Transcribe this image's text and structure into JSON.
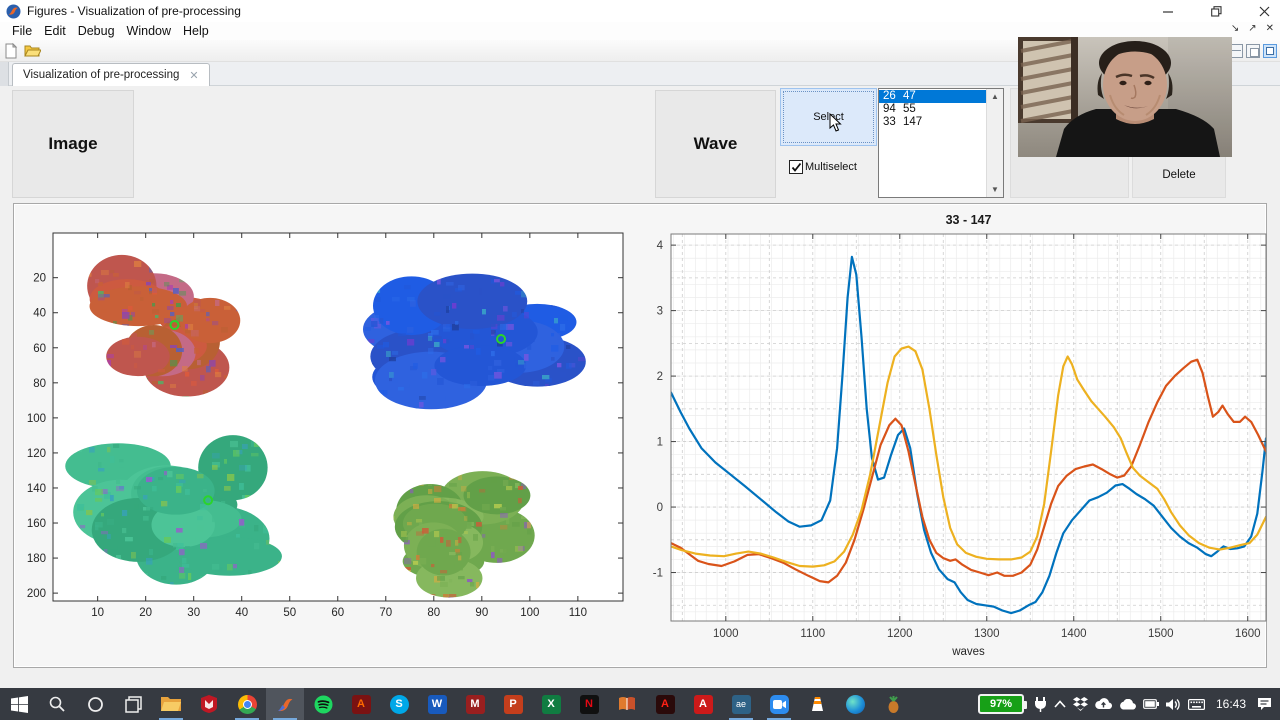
{
  "window": {
    "title": "Figures - Visualization of pre-processing"
  },
  "menu": {
    "items": [
      "File",
      "Edit",
      "Debug",
      "Window",
      "Help"
    ]
  },
  "toolbar": {
    "icons": [
      "new-document",
      "open-folder"
    ]
  },
  "tab": {
    "label": "Visualization of pre-processing"
  },
  "controls": {
    "image_button": "Image",
    "wave_button": "Wave",
    "select_button": "Select",
    "multiselect_label": "Multiselect",
    "multiselect_checked": true,
    "delete_button": "Delete",
    "listbox": {
      "items": [
        {
          "a": "26",
          "b": "47",
          "selected": true
        },
        {
          "a": "94",
          "b": "55",
          "selected": false
        },
        {
          "a": "33",
          "b": "147",
          "selected": false
        }
      ]
    }
  },
  "chart_data": [
    {
      "type": "heatmap",
      "title": "",
      "xlabel": "",
      "ylabel": "",
      "xlim": [
        0.7,
        119.4
      ],
      "ylim_top_to_bottom": [
        -5.5,
        204.5
      ],
      "y_axis_reversed": true,
      "xticks": [
        10,
        20,
        30,
        40,
        50,
        60,
        70,
        80,
        90,
        100,
        110
      ],
      "yticks": [
        20,
        40,
        60,
        80,
        100,
        120,
        140,
        160,
        180,
        200
      ],
      "grid": false,
      "marker_color": "#2bd42b",
      "markers": [
        [
          26,
          47
        ],
        [
          94,
          55
        ],
        [
          33,
          147
        ]
      ],
      "blobs": [
        {
          "name": "red-multicolor-blob",
          "cx": 27,
          "cy": 50,
          "rx": 21,
          "ry": 40,
          "base": [
            "#cd5a40",
            "#c96038",
            "#bf564e",
            "#c46a86",
            "#b86033"
          ],
          "accents": [
            "#3f9e4d",
            "#8a46b0",
            "#e05a3a",
            "#52b066",
            "#aa3fb0",
            "#de8040",
            "#5560c0"
          ]
        },
        {
          "name": "blue-blob",
          "cx": 88,
          "cy": 57,
          "rx": 25,
          "ry": 37,
          "base": [
            "#2356d6",
            "#1f5ce4",
            "#2a52c8",
            "#2f62df"
          ],
          "accents": [
            "#6a3fd0",
            "#3cb0c8",
            "#2040a0",
            "#7a55e0",
            "#2d6de8"
          ]
        },
        {
          "name": "green-blob",
          "cx": 26,
          "cy": 153,
          "rx": 23,
          "ry": 41,
          "base": [
            "#3bb389",
            "#44bd90",
            "#35a87c",
            "#4cc497"
          ],
          "accents": [
            "#66c95e",
            "#38a0c0",
            "#84c44e",
            "#9a5ace",
            "#3fbf9a"
          ]
        },
        {
          "name": "olive-green-blob",
          "cx": 87,
          "cy": 166,
          "rx": 19,
          "ry": 37,
          "base": [
            "#6fa84e",
            "#7cb055",
            "#62a048",
            "#86b85e"
          ],
          "accents": [
            "#cc8038",
            "#d8ac40",
            "#9055c8",
            "#b8cc50",
            "#cc5c38"
          ]
        }
      ]
    },
    {
      "type": "line",
      "title": "33 - 147",
      "xlabel": "waves",
      "ylabel": "",
      "xlim": [
        937,
        1621
      ],
      "ylim": [
        -1.74,
        4.17
      ],
      "xticks": [
        1000,
        1100,
        1200,
        1300,
        1400,
        1500,
        1600
      ],
      "yticks": [
        -1,
        0,
        1,
        2,
        3,
        4
      ],
      "grid": "major-dashed plus minor-solid",
      "series": [
        {
          "name": "blue",
          "color": "#0072BD",
          "points": [
            [
              937,
              1.75
            ],
            [
              948,
              1.45
            ],
            [
              958,
              1.2
            ],
            [
              972,
              0.9
            ],
            [
              988,
              0.68
            ],
            [
              1005,
              0.5
            ],
            [
              1022,
              0.32
            ],
            [
              1040,
              0.12
            ],
            [
              1058,
              -0.08
            ],
            [
              1072,
              -0.22
            ],
            [
              1085,
              -0.3
            ],
            [
              1098,
              -0.28
            ],
            [
              1110,
              -0.2
            ],
            [
              1120,
              0.1
            ],
            [
              1128,
              0.9
            ],
            [
              1134,
              2.0
            ],
            [
              1140,
              3.2
            ],
            [
              1145,
              3.82
            ],
            [
              1150,
              3.55
            ],
            [
              1156,
              2.6
            ],
            [
              1162,
              1.5
            ],
            [
              1168,
              0.75
            ],
            [
              1175,
              0.42
            ],
            [
              1182,
              0.45
            ],
            [
              1190,
              0.8
            ],
            [
              1198,
              1.1
            ],
            [
              1205,
              1.2
            ],
            [
              1212,
              0.9
            ],
            [
              1220,
              0.2
            ],
            [
              1228,
              -0.35
            ],
            [
              1236,
              -0.7
            ],
            [
              1245,
              -0.95
            ],
            [
              1255,
              -1.1
            ],
            [
              1263,
              -1.15
            ],
            [
              1270,
              -1.3
            ],
            [
              1278,
              -1.42
            ],
            [
              1288,
              -1.48
            ],
            [
              1298,
              -1.5
            ],
            [
              1308,
              -1.52
            ],
            [
              1318,
              -1.58
            ],
            [
              1328,
              -1.62
            ],
            [
              1338,
              -1.58
            ],
            [
              1348,
              -1.5
            ],
            [
              1356,
              -1.45
            ],
            [
              1364,
              -1.3
            ],
            [
              1372,
              -1.05
            ],
            [
              1380,
              -0.7
            ],
            [
              1388,
              -0.4
            ],
            [
              1398,
              -0.2
            ],
            [
              1408,
              -0.05
            ],
            [
              1418,
              0.1
            ],
            [
              1428,
              0.15
            ],
            [
              1438,
              0.22
            ],
            [
              1448,
              0.33
            ],
            [
              1456,
              0.35
            ],
            [
              1464,
              0.28
            ],
            [
              1472,
              0.2
            ],
            [
              1482,
              0.12
            ],
            [
              1492,
              0.02
            ],
            [
              1502,
              -0.15
            ],
            [
              1512,
              -0.32
            ],
            [
              1522,
              -0.45
            ],
            [
              1532,
              -0.55
            ],
            [
              1542,
              -0.62
            ],
            [
              1552,
              -0.72
            ],
            [
              1558,
              -0.75
            ],
            [
              1565,
              -0.68
            ],
            [
              1572,
              -0.6
            ],
            [
              1580,
              -0.64
            ],
            [
              1588,
              -0.63
            ],
            [
              1596,
              -0.6
            ],
            [
              1604,
              -0.45
            ],
            [
              1611,
              -0.1
            ],
            [
              1617,
              0.55
            ],
            [
              1621,
              1.05
            ]
          ]
        },
        {
          "name": "orange",
          "color": "#D95319",
          "points": [
            [
              937,
              -0.55
            ],
            [
              948,
              -0.62
            ],
            [
              958,
              -0.72
            ],
            [
              968,
              -0.82
            ],
            [
              980,
              -0.87
            ],
            [
              995,
              -0.9
            ],
            [
              1010,
              -0.83
            ],
            [
              1025,
              -0.73
            ],
            [
              1038,
              -0.72
            ],
            [
              1052,
              -0.78
            ],
            [
              1066,
              -0.85
            ],
            [
              1080,
              -0.95
            ],
            [
              1095,
              -1.05
            ],
            [
              1108,
              -1.13
            ],
            [
              1118,
              -1.15
            ],
            [
              1128,
              -1.05
            ],
            [
              1138,
              -0.85
            ],
            [
              1148,
              -0.5
            ],
            [
              1158,
              -0.05
            ],
            [
              1168,
              0.45
            ],
            [
              1178,
              0.95
            ],
            [
              1188,
              1.25
            ],
            [
              1195,
              1.35
            ],
            [
              1202,
              1.25
            ],
            [
              1210,
              0.85
            ],
            [
              1218,
              0.35
            ],
            [
              1226,
              -0.15
            ],
            [
              1234,
              -0.5
            ],
            [
              1242,
              -0.7
            ],
            [
              1250,
              -0.78
            ],
            [
              1258,
              -0.82
            ],
            [
              1264,
              -0.8
            ],
            [
              1272,
              -0.88
            ],
            [
              1282,
              -0.96
            ],
            [
              1292,
              -1.0
            ],
            [
              1302,
              -1.04
            ],
            [
              1312,
              -1.0
            ],
            [
              1320,
              -1.05
            ],
            [
              1330,
              -1.05
            ],
            [
              1340,
              -1.0
            ],
            [
              1350,
              -0.88
            ],
            [
              1358,
              -0.65
            ],
            [
              1366,
              -0.3
            ],
            [
              1374,
              0.05
            ],
            [
              1382,
              0.32
            ],
            [
              1392,
              0.48
            ],
            [
              1402,
              0.58
            ],
            [
              1412,
              0.62
            ],
            [
              1422,
              0.65
            ],
            [
              1432,
              0.58
            ],
            [
              1442,
              0.5
            ],
            [
              1450,
              0.45
            ],
            [
              1458,
              0.48
            ],
            [
              1466,
              0.62
            ],
            [
              1476,
              0.95
            ],
            [
              1486,
              1.3
            ],
            [
              1496,
              1.6
            ],
            [
              1506,
              1.85
            ],
            [
              1516,
              2.0
            ],
            [
              1526,
              2.12
            ],
            [
              1535,
              2.22
            ],
            [
              1542,
              2.25
            ],
            [
              1548,
              2.05
            ],
            [
              1554,
              1.7
            ],
            [
              1560,
              1.38
            ],
            [
              1566,
              1.45
            ],
            [
              1571,
              1.55
            ],
            [
              1577,
              1.42
            ],
            [
              1584,
              1.3
            ],
            [
              1591,
              1.3
            ],
            [
              1597,
              1.38
            ],
            [
              1604,
              1.3
            ],
            [
              1612,
              1.1
            ],
            [
              1621,
              0.85
            ]
          ]
        },
        {
          "name": "yellow",
          "color": "#EDB120",
          "points": [
            [
              937,
              -0.6
            ],
            [
              950,
              -0.66
            ],
            [
              965,
              -0.71
            ],
            [
              982,
              -0.74
            ],
            [
              998,
              -0.75
            ],
            [
              1012,
              -0.71
            ],
            [
              1026,
              -0.68
            ],
            [
              1040,
              -0.71
            ],
            [
              1055,
              -0.77
            ],
            [
              1070,
              -0.84
            ],
            [
              1085,
              -0.9
            ],
            [
              1100,
              -0.91
            ],
            [
              1113,
              -0.89
            ],
            [
              1125,
              -0.83
            ],
            [
              1136,
              -0.68
            ],
            [
              1146,
              -0.42
            ],
            [
              1156,
              -0.05
            ],
            [
              1166,
              0.5
            ],
            [
              1176,
              1.2
            ],
            [
              1186,
              1.9
            ],
            [
              1194,
              2.3
            ],
            [
              1202,
              2.42
            ],
            [
              1210,
              2.45
            ],
            [
              1218,
              2.38
            ],
            [
              1226,
              2.1
            ],
            [
              1234,
              1.5
            ],
            [
              1242,
              0.8
            ],
            [
              1250,
              0.15
            ],
            [
              1258,
              -0.32
            ],
            [
              1266,
              -0.57
            ],
            [
              1276,
              -0.7
            ],
            [
              1288,
              -0.76
            ],
            [
              1300,
              -0.79
            ],
            [
              1314,
              -0.8
            ],
            [
              1328,
              -0.8
            ],
            [
              1340,
              -0.77
            ],
            [
              1350,
              -0.68
            ],
            [
              1358,
              -0.45
            ],
            [
              1366,
              0.05
            ],
            [
              1374,
              0.85
            ],
            [
              1382,
              1.7
            ],
            [
              1388,
              2.15
            ],
            [
              1393,
              2.3
            ],
            [
              1398,
              2.18
            ],
            [
              1404,
              1.95
            ],
            [
              1412,
              1.78
            ],
            [
              1420,
              1.62
            ],
            [
              1428,
              1.5
            ],
            [
              1436,
              1.38
            ],
            [
              1446,
              1.22
            ],
            [
              1454,
              1.05
            ],
            [
              1460,
              0.85
            ],
            [
              1468,
              0.6
            ],
            [
              1476,
              0.48
            ],
            [
              1486,
              0.38
            ],
            [
              1496,
              0.28
            ],
            [
              1504,
              0.12
            ],
            [
              1512,
              -0.08
            ],
            [
              1522,
              -0.28
            ],
            [
              1532,
              -0.43
            ],
            [
              1544,
              -0.55
            ],
            [
              1556,
              -0.62
            ],
            [
              1568,
              -0.65
            ],
            [
              1580,
              -0.62
            ],
            [
              1592,
              -0.58
            ],
            [
              1602,
              -0.55
            ],
            [
              1611,
              -0.42
            ],
            [
              1621,
              -0.15
            ]
          ]
        }
      ]
    }
  ],
  "taskbar": {
    "clock": "16:43",
    "battery": "97%"
  },
  "colors": {
    "selection_blue": "#0078d7",
    "select_button_bg": "#dce9fa",
    "marker_green": "#2bd42b",
    "series_blue": "#0072BD",
    "series_orange": "#D95319",
    "series_yellow": "#EDB120",
    "taskbar_bg": "#363a41",
    "battery_green": "#17a017"
  }
}
